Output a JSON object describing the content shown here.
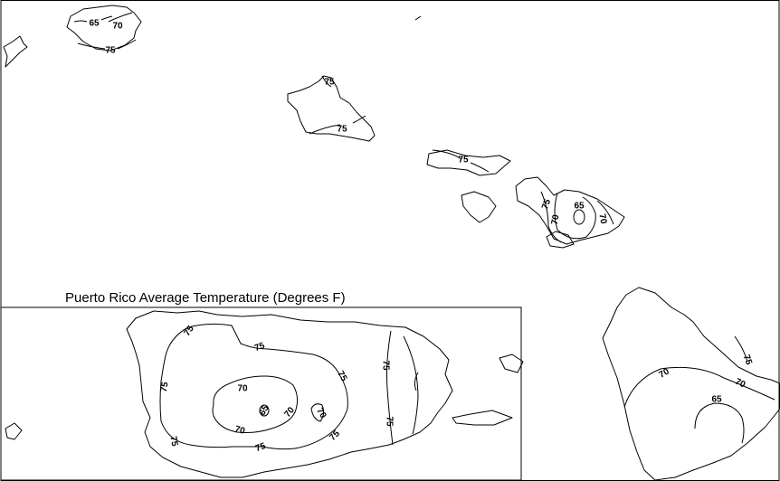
{
  "inset": {
    "title": "Puerto Rico Average Temperature (Degrees F)"
  },
  "contour_labels": {
    "kauai_65": "65",
    "kauai_70": "70",
    "kauai_75": "75",
    "oahu_75a": "75",
    "oahu_75b": "75",
    "molokai_75": "75",
    "maui_75": "75",
    "maui_70": "70",
    "maui_65": "65",
    "maui_70b": "70",
    "hawaii_75": "75",
    "hawaii_70a": "70",
    "hawaii_70b": "70",
    "hawaii_65": "65",
    "pr_75_nw": "75",
    "pr_75_n": "75",
    "pr_75_w": "75",
    "pr_75_ne": "75",
    "pr_75_e": "75",
    "pr_75_se": "75",
    "pr_75_s": "75",
    "pr_75_sw": "75",
    "pr_75_sc": "75",
    "pr_70_n": "70",
    "pr_70_s": "70",
    "pr_70_e": "70",
    "pr_70_c": "70",
    "pr_65": "65"
  }
}
